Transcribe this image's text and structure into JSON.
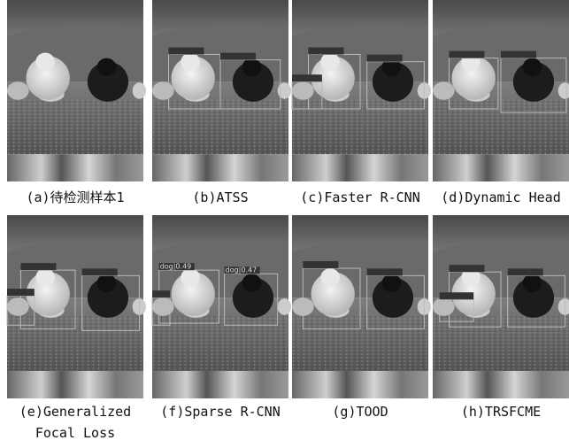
{
  "panels": [
    {
      "caption": [
        "(a)待检测样本1"
      ]
    },
    {
      "caption": [
        "(b)ATSS"
      ]
    },
    {
      "caption": [
        "(c)Faster R-CNN"
      ]
    },
    {
      "caption": [
        "(d)Dynamic Head"
      ]
    },
    {
      "caption": [
        "(e)Generalized",
        "Focal Loss"
      ]
    },
    {
      "caption": [
        "(f)Sparse R-CNN"
      ],
      "labels": [
        "dog|0.49",
        "dog|0.47"
      ]
    },
    {
      "caption": [
        "(g)TOOD"
      ]
    },
    {
      "caption": [
        "(h)TRSFCME"
      ]
    }
  ]
}
